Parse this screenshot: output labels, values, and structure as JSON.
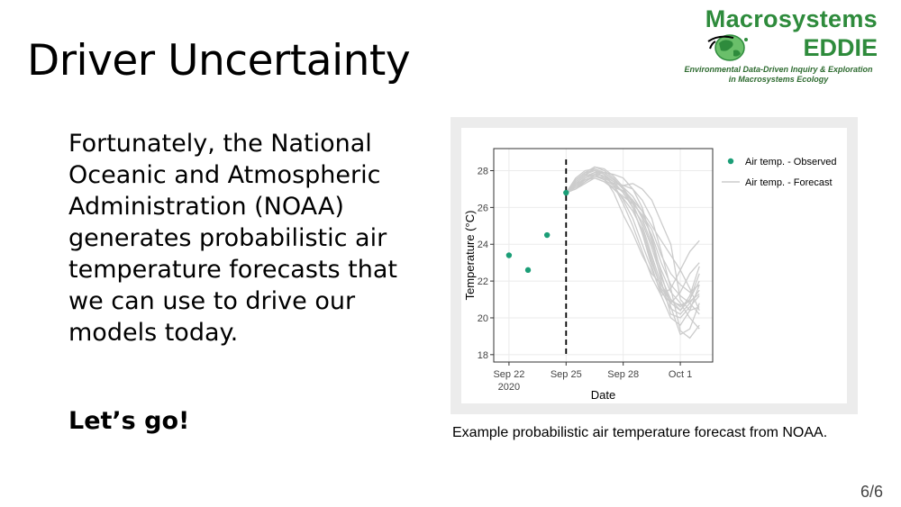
{
  "slide": {
    "title": "Driver Uncertainty",
    "body": "Fortunately, the National Oceanic and Atmospheric Administration (NOAA) generates probabilistic air temperature forecasts that we can use to drive our models today.",
    "cta": "Let’s go!",
    "caption": "Example probabilistic air temperature forecast from NOAA.",
    "page": "6/6"
  },
  "logo": {
    "line1": "Macrosystems",
    "line2": "EDDIE",
    "tagline1": "Environmental Data-Driven Inquiry & Exploration",
    "tagline2": "in Macrosystems Ecology",
    "color": "#2e8b3c"
  },
  "chart_data": {
    "type": "line",
    "xlabel": "Date",
    "ylabel": "Temperature (°C)",
    "x_ticks": [
      "Sep 22\n2020",
      "Sep 25",
      "Sep 28",
      "Oct 1"
    ],
    "x_tick_days": [
      0,
      3,
      6,
      9
    ],
    "xlim": [
      -0.8,
      10.7
    ],
    "ylim": [
      17.6,
      29.2
    ],
    "y_ticks": [
      18,
      20,
      22,
      24,
      26,
      28
    ],
    "forecast_start_day": 3,
    "grid": true,
    "legend_position": "top-right",
    "colors": {
      "observed": "#1b9e77",
      "forecast": "#cccccc",
      "vline": "#000000"
    },
    "series": [
      {
        "name": "Air temp. - Observed",
        "kind": "points",
        "x": [
          0,
          1,
          2,
          3
        ],
        "y": [
          23.4,
          22.6,
          24.5,
          26.8
        ]
      },
      {
        "name": "Air temp. - Forecast",
        "kind": "ensemble",
        "x": [
          3,
          3.5,
          4,
          4.5,
          5,
          5.5,
          6,
          6.5,
          7,
          7.5,
          8,
          8.5,
          9,
          9.5,
          10
        ],
        "members": [
          [
            26.8,
            27.2,
            27.6,
            27.8,
            27.5,
            27.0,
            26.5,
            25.8,
            24.8,
            23.2,
            21.5,
            20.5,
            20.2,
            20.8,
            21.5
          ],
          [
            26.8,
            27.4,
            27.8,
            28.0,
            27.8,
            27.4,
            26.8,
            26.0,
            25.2,
            23.8,
            22.2,
            21.0,
            20.6,
            21.0,
            22.0
          ],
          [
            26.8,
            27.0,
            27.3,
            27.6,
            27.4,
            27.1,
            26.9,
            26.3,
            25.5,
            24.5,
            23.0,
            21.8,
            21.2,
            20.8,
            20.2
          ],
          [
            26.8,
            27.5,
            27.9,
            28.2,
            28.0,
            27.6,
            27.0,
            26.0,
            24.6,
            22.8,
            21.2,
            20.0,
            19.6,
            20.4,
            21.8
          ],
          [
            26.8,
            27.1,
            27.5,
            27.7,
            27.6,
            27.3,
            27.2,
            27.0,
            26.4,
            25.4,
            23.6,
            21.6,
            19.3,
            18.9,
            19.6
          ],
          [
            26.8,
            27.3,
            27.7,
            27.9,
            27.7,
            27.2,
            26.4,
            25.4,
            24.0,
            22.6,
            21.4,
            20.8,
            21.4,
            22.4,
            23.0
          ],
          [
            26.8,
            27.2,
            27.6,
            27.9,
            27.9,
            27.5,
            27.1,
            26.6,
            25.8,
            24.4,
            22.4,
            20.6,
            19.1,
            19.4,
            20.8
          ],
          [
            26.8,
            27.6,
            28.0,
            28.1,
            27.8,
            27.2,
            26.2,
            25.0,
            23.6,
            22.2,
            21.2,
            21.6,
            22.6,
            23.6,
            24.2
          ],
          [
            26.8,
            27.0,
            27.4,
            27.8,
            27.9,
            27.8,
            27.6,
            27.0,
            26.0,
            24.2,
            22.0,
            20.2,
            20.0,
            20.6,
            21.2
          ],
          [
            26.8,
            27.3,
            27.5,
            27.6,
            27.4,
            27.0,
            26.6,
            26.2,
            25.6,
            24.8,
            23.4,
            22.4,
            21.8,
            21.4,
            21.8
          ],
          [
            26.8,
            27.4,
            27.8,
            28.1,
            27.9,
            27.5,
            27.0,
            26.4,
            25.4,
            24.0,
            22.6,
            21.4,
            20.8,
            20.0,
            19.4
          ],
          [
            26.8,
            27.2,
            27.6,
            27.8,
            27.7,
            27.4,
            27.2,
            27.3,
            27.0,
            26.4,
            25.2,
            24.0,
            21.0,
            20.4,
            20.6
          ],
          [
            26.8,
            27.5,
            27.9,
            28.0,
            27.6,
            26.8,
            25.6,
            24.6,
            23.4,
            22.4,
            21.8,
            21.0,
            20.4,
            21.2,
            22.8
          ],
          [
            26.8,
            27.1,
            27.4,
            27.7,
            27.5,
            27.2,
            26.9,
            26.4,
            25.8,
            25.0,
            24.2,
            23.4,
            22.6,
            21.6,
            20.4
          ],
          [
            26.8,
            27.3,
            27.7,
            28.2,
            28.1,
            27.7,
            27.1,
            26.2,
            25.0,
            23.4,
            21.8,
            20.8,
            20.4,
            21.0,
            22.4
          ],
          [
            26.8,
            27.2,
            27.5,
            27.7,
            27.6,
            27.3,
            26.8,
            26.0,
            24.6,
            23.0,
            21.6,
            20.9,
            20.7,
            20.9,
            21.3
          ]
        ]
      }
    ]
  }
}
